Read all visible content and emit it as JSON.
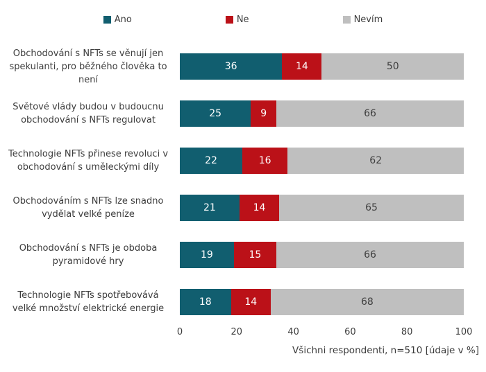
{
  "chart_data": {
    "type": "bar",
    "orientation": "horizontal",
    "stacked": true,
    "title": "",
    "categories": [
      "Obchodování s NFTs se věnují jen spekulanti, pro běžného člověka to není",
      "Světové vlády budou v budoucnu obchodování s NFTs regulovat",
      "Technologie NFTs přinese revoluci v obchodování s uměleckými díly",
      "Obchodováním s NFTs lze snadno vydělat velké peníze",
      "Obchodování s NFTs je obdoba pyramidové hry",
      "Technologie NFTs spotřebovává velké množství elektrické energie"
    ],
    "series": [
      {
        "name": "Ano",
        "color": "#115e6f",
        "value_label_color": "#ffffff",
        "values": [
          36,
          25,
          22,
          21,
          19,
          18
        ]
      },
      {
        "name": "Ne",
        "color": "#bb1118",
        "value_label_color": "#ffffff",
        "values": [
          14,
          9,
          16,
          14,
          15,
          14
        ]
      },
      {
        "name": "Nevím",
        "color": "#bfbfbf",
        "value_label_color": "#3f3f3f",
        "values": [
          50,
          66,
          62,
          65,
          66,
          68
        ]
      }
    ],
    "xlim": [
      0,
      100
    ],
    "x_ticks": [
      0,
      20,
      40,
      60,
      80,
      100
    ],
    "legend_position": "top",
    "gridlines": false,
    "value_labels": "inside-center",
    "footnote": "Všichni respondenti, n=510 [údaje v %]"
  }
}
